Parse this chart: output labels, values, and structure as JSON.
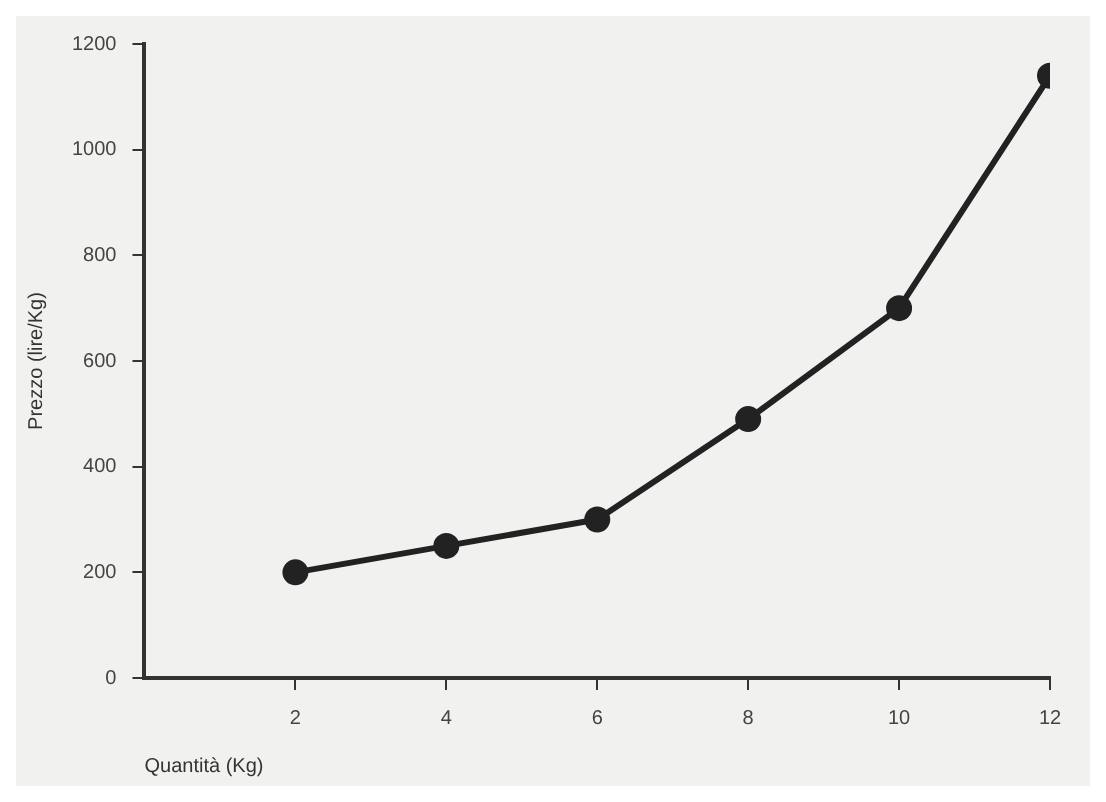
{
  "chart_data": {
    "type": "line",
    "xlabel": "Quantità (Kg)",
    "ylabel": "Prezzo (lire/Kg)",
    "x": [
      2,
      4,
      6,
      8,
      10,
      12
    ],
    "series": [
      {
        "color": "#222222",
        "values": [
          200,
          250,
          300,
          490,
          700,
          1140
        ]
      }
    ],
    "xlim": [
      0,
      12
    ],
    "xticks": [
      2,
      4,
      6,
      8,
      10,
      12
    ],
    "ylim": [
      0,
      1200
    ],
    "yticks": [
      0,
      200,
      400,
      600,
      800,
      1000,
      1200
    ],
    "grid": false,
    "legend": false,
    "marker": "circle",
    "line_style": "solid"
  }
}
